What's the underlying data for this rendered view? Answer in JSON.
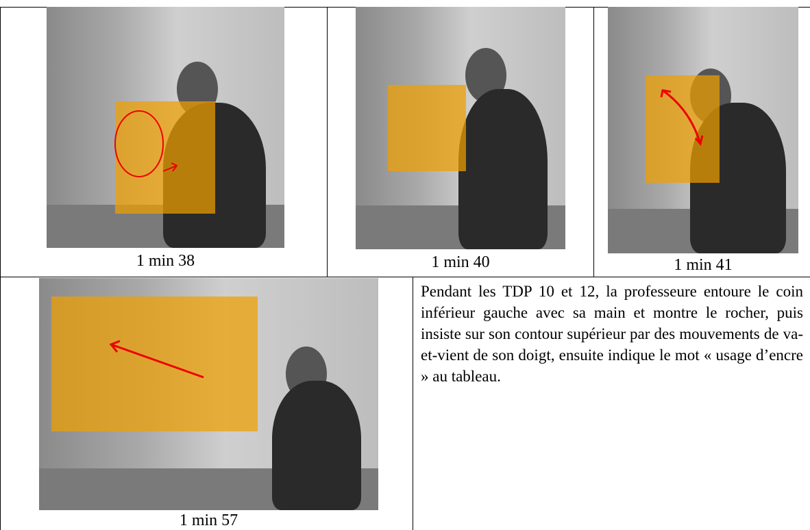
{
  "table": {
    "rows": [
      [
        "1 min 38",
        "1 min 40",
        "1 min 41"
      ],
      [
        "1 min 57",
        "Pendant les TDP 10 et 12, la professeure entoure le coin inférieur gauche avec sa main et montre le rocher, puis insiste sur son contour supérieur par des mouvements de va-et-vient de son doigt, ensuite indique le mot « usage d’encre » au tableau."
      ]
    ]
  }
}
